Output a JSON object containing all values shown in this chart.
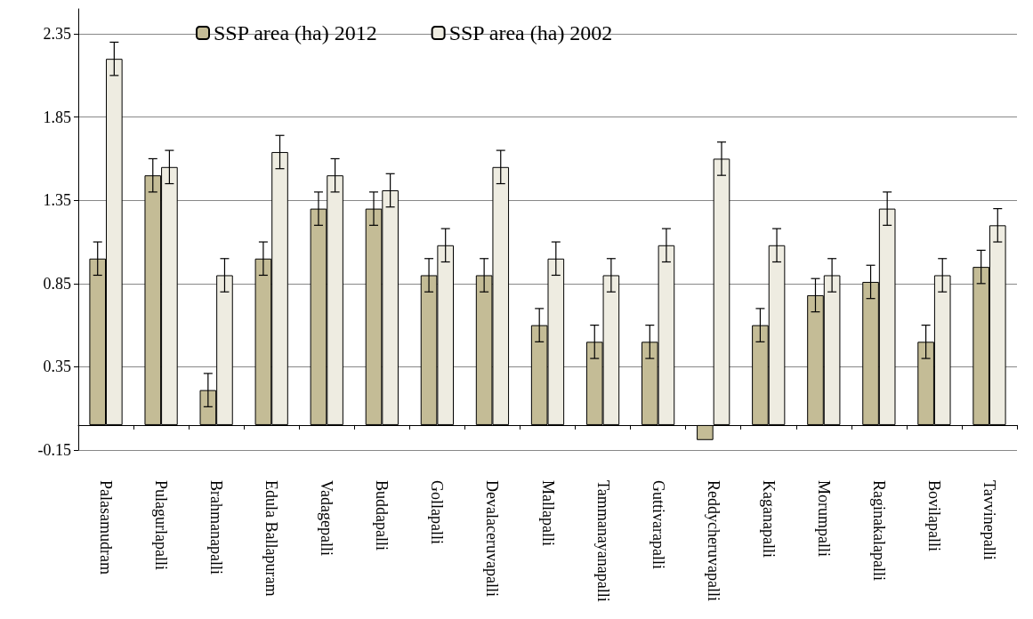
{
  "chart_data": {
    "type": "bar",
    "categories": [
      "Palasamudram",
      "Pulagurlapalli",
      "Brahmanapalli",
      "Edula Ballapuram",
      "Vadagepalli",
      "Buddapalli",
      "Gollapalli",
      "Devalaceruvapalli",
      "Mallapalli",
      "Tammanayanapalli",
      "Guttivarapalli",
      "Reddycheruvapalli",
      "Kaganapalli",
      "Morumpalli",
      "Raginakalapalli",
      "Bovilapalli",
      "Tavvinepalli"
    ],
    "series": [
      {
        "name": "SSP area (ha) 2012",
        "color": "#c4bc96",
        "values": [
          1.0,
          1.5,
          0.21,
          1.0,
          1.3,
          1.3,
          0.9,
          0.9,
          0.6,
          0.5,
          0.5,
          -0.09,
          0.6,
          0.78,
          0.86,
          0.5,
          0.95
        ],
        "errors": [
          0.1,
          0.1,
          0.1,
          0.1,
          0.1,
          0.1,
          0.1,
          0.1,
          0.1,
          0.1,
          0.1,
          null,
          0.1,
          0.1,
          0.1,
          0.1,
          0.1
        ]
      },
      {
        "name": "SSP area (ha) 2002",
        "color": "#eeece1",
        "values": [
          2.2,
          1.55,
          0.9,
          1.64,
          1.5,
          1.41,
          1.08,
          1.55,
          1.0,
          0.9,
          1.08,
          1.6,
          1.08,
          0.9,
          1.3,
          0.9,
          1.2
        ],
        "errors": [
          0.1,
          0.1,
          0.1,
          0.1,
          0.1,
          0.1,
          0.1,
          0.1,
          0.1,
          0.1,
          0.1,
          0.1,
          0.1,
          0.1,
          0.1,
          0.1,
          0.1
        ]
      }
    ],
    "ylim": [
      -0.15,
      2.5
    ],
    "yticks": [
      -0.15,
      0.35,
      0.85,
      1.35,
      1.85,
      2.35
    ],
    "grid": "y",
    "legend": "top"
  }
}
